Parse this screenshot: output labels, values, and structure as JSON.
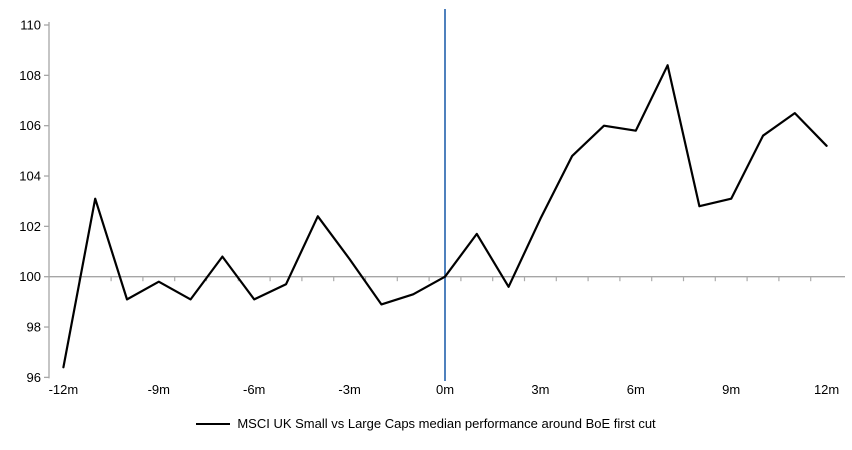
{
  "chart_data": {
    "type": "line",
    "title": "",
    "xlabel": "",
    "ylabel": "",
    "x": [
      -12,
      -11,
      -10,
      -9,
      -8,
      -7,
      -6,
      -5,
      -4,
      -3,
      -2,
      -1,
      0,
      1,
      2,
      3,
      4,
      5,
      6,
      7,
      8,
      9,
      10,
      11,
      12
    ],
    "series": [
      {
        "name": "MSCI UK Small vs Large Caps median performance around BoE first cut",
        "values": [
          96.4,
          103.1,
          99.1,
          99.8,
          99.1,
          100.8,
          99.1,
          99.7,
          102.4,
          100.7,
          98.9,
          99.3,
          100.0,
          101.7,
          99.6,
          102.3,
          104.8,
          106.0,
          105.8,
          108.4,
          102.8,
          103.1,
          105.6,
          106.5,
          105.2
        ]
      }
    ],
    "ylim": [
      96,
      110
    ],
    "y_ticks": [
      96,
      98,
      100,
      102,
      104,
      106,
      108,
      110
    ],
    "x_tick_positions": [
      -12,
      -9,
      -6,
      -3,
      0,
      3,
      6,
      9,
      12
    ],
    "x_tick_labels": [
      "-12m",
      "-9m",
      "-6m",
      "-3m",
      "0m",
      "3m",
      "6m",
      "9m",
      "12m"
    ],
    "baseline_value": 100,
    "event_line_x": 0,
    "grid": "single horizontal gray line at y=100 with minor ticks; no other gridlines",
    "legend_position": "bottom-center",
    "colors": {
      "series": "#000000",
      "event_line": "#4F81BD",
      "axis": "#A6A6A6",
      "baseline": "#A6A6A6",
      "minor_tick": "#ABABAB",
      "text": "#000000"
    }
  },
  "legend": {
    "label": "MSCI UK Small vs Large Caps median performance around BoE first cut"
  }
}
